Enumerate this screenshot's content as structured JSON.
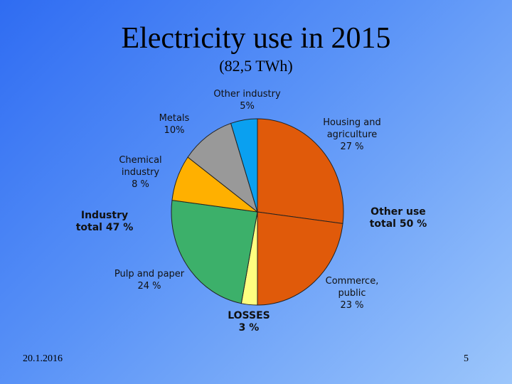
{
  "slide": {
    "title": "Electricity use in 2015",
    "subtitle": "(82,5 TWh)",
    "date": "20.1.2016",
    "page_number": "5"
  },
  "chart_data": {
    "type": "pie",
    "unit": "%",
    "slices": [
      {
        "name": "Housing and agriculture",
        "value": 27,
        "color": "#e05a0a",
        "label_lines": [
          "Housing and",
          "agriculture",
          "27 %"
        ]
      },
      {
        "name": "Commerce, public",
        "value": 23,
        "color": "#e05a0a",
        "label_lines": [
          "Commerce,",
          "public",
          "23 %"
        ]
      },
      {
        "name": "LOSSES",
        "value": 3,
        "color": "#ffff80",
        "label_lines": [
          "LOSSES",
          "3 %"
        ]
      },
      {
        "name": "Pulp and paper",
        "value": 24,
        "color": "#3cb06a",
        "label_lines": [
          "Pulp and paper",
          "24 %"
        ]
      },
      {
        "name": "Chemical industry",
        "value": 8,
        "color": "#ffb000",
        "label_lines": [
          "Chemical",
          "industry",
          "8 %"
        ]
      },
      {
        "name": "Metals",
        "value": 10,
        "color": "#999999",
        "label_lines": [
          "Metals",
          "10%"
        ]
      },
      {
        "name": "Other industry",
        "value": 5,
        "color": "#0aa0f0",
        "label_lines": [
          "Other industry",
          "5%"
        ]
      }
    ],
    "group_labels": [
      {
        "name": "Other use total",
        "value": 50,
        "label_lines": [
          "Other use",
          "total 50 %"
        ]
      },
      {
        "name": "Industry total",
        "value": 47,
        "label_lines": [
          "Industry",
          "total 47 %"
        ]
      }
    ]
  }
}
